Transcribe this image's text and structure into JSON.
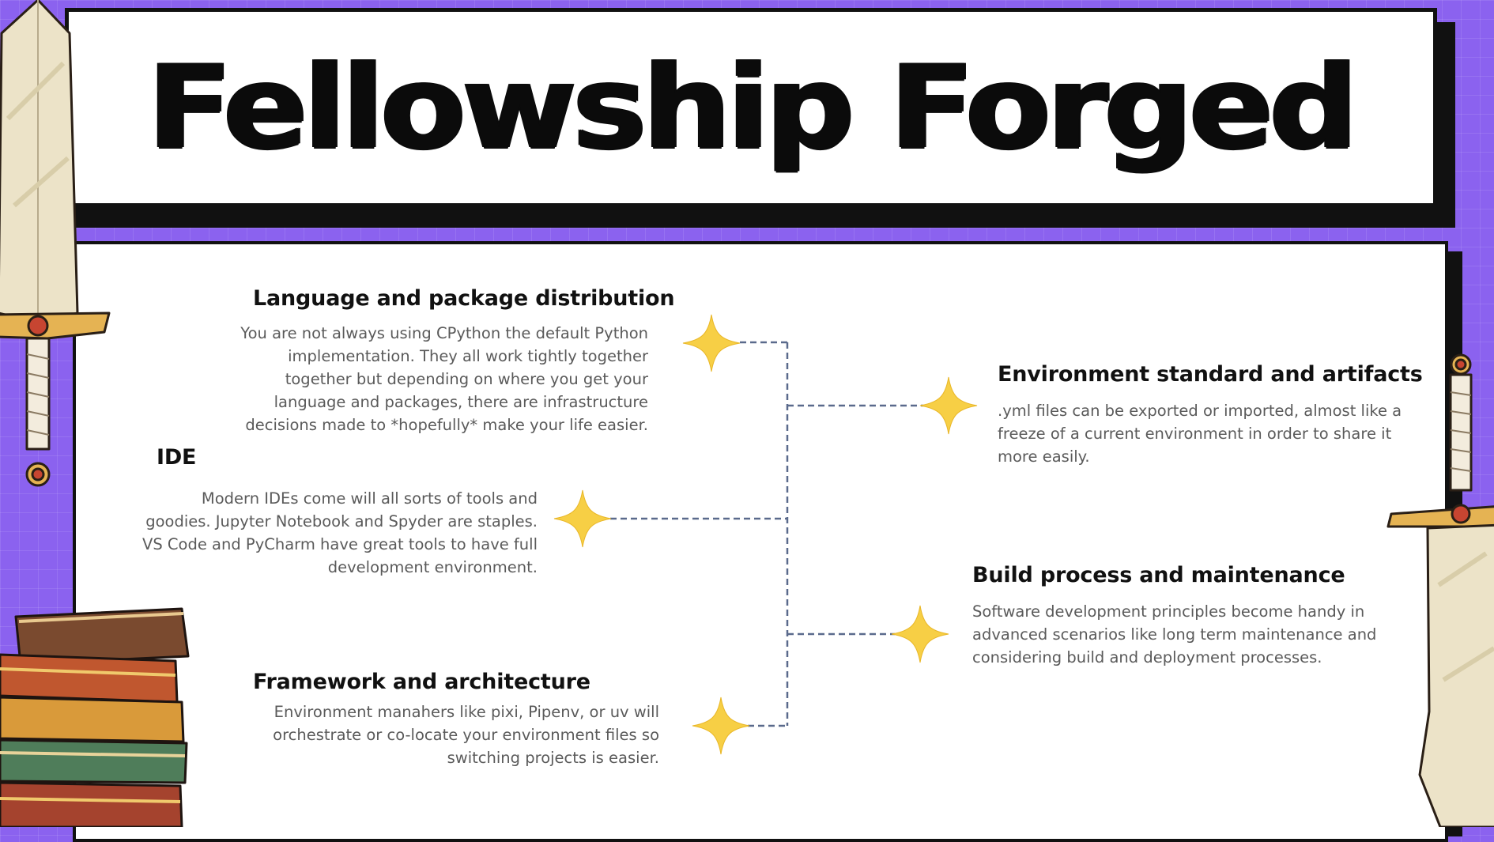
{
  "title": "Fellowship Forged",
  "items": {
    "language": {
      "heading": "Language and package distribution",
      "body": "You are not always using CPython the default Python implementation. They all work tightly together together but depending on where you get your language and packages, there are infrastructure decisions made to *hopefully* make your life easier."
    },
    "ide": {
      "heading": "IDE",
      "body": "Modern IDEs come will all sorts of tools and goodies. Jupyter Notebook and Spyder are staples. VS Code and PyCharm have great tools to have full development environment."
    },
    "framework": {
      "heading": "Framework and architecture",
      "body": "Environment manahers like pixi, Pipenv, or uv will orchestrate or co-locate your environment files so switching projects is easier."
    },
    "environment": {
      "heading": "Environment standard and artifacts",
      "body": ".yml files can be exported or imported, almost like a freeze of a current environment in order to share it more easily."
    },
    "build": {
      "heading": "Build process and maintenance",
      "body": "Software development principles become handy in advanced scenarios like long term maintenance and considering build and deployment processes."
    }
  },
  "icons": [
    "star-icon",
    "sword-icon",
    "book-stack-icon"
  ],
  "colors": {
    "background": "#8b62ef",
    "star": "#f7cf45",
    "connector": "#5a6a8c",
    "panel": "#ffffff",
    "border": "#111111"
  }
}
